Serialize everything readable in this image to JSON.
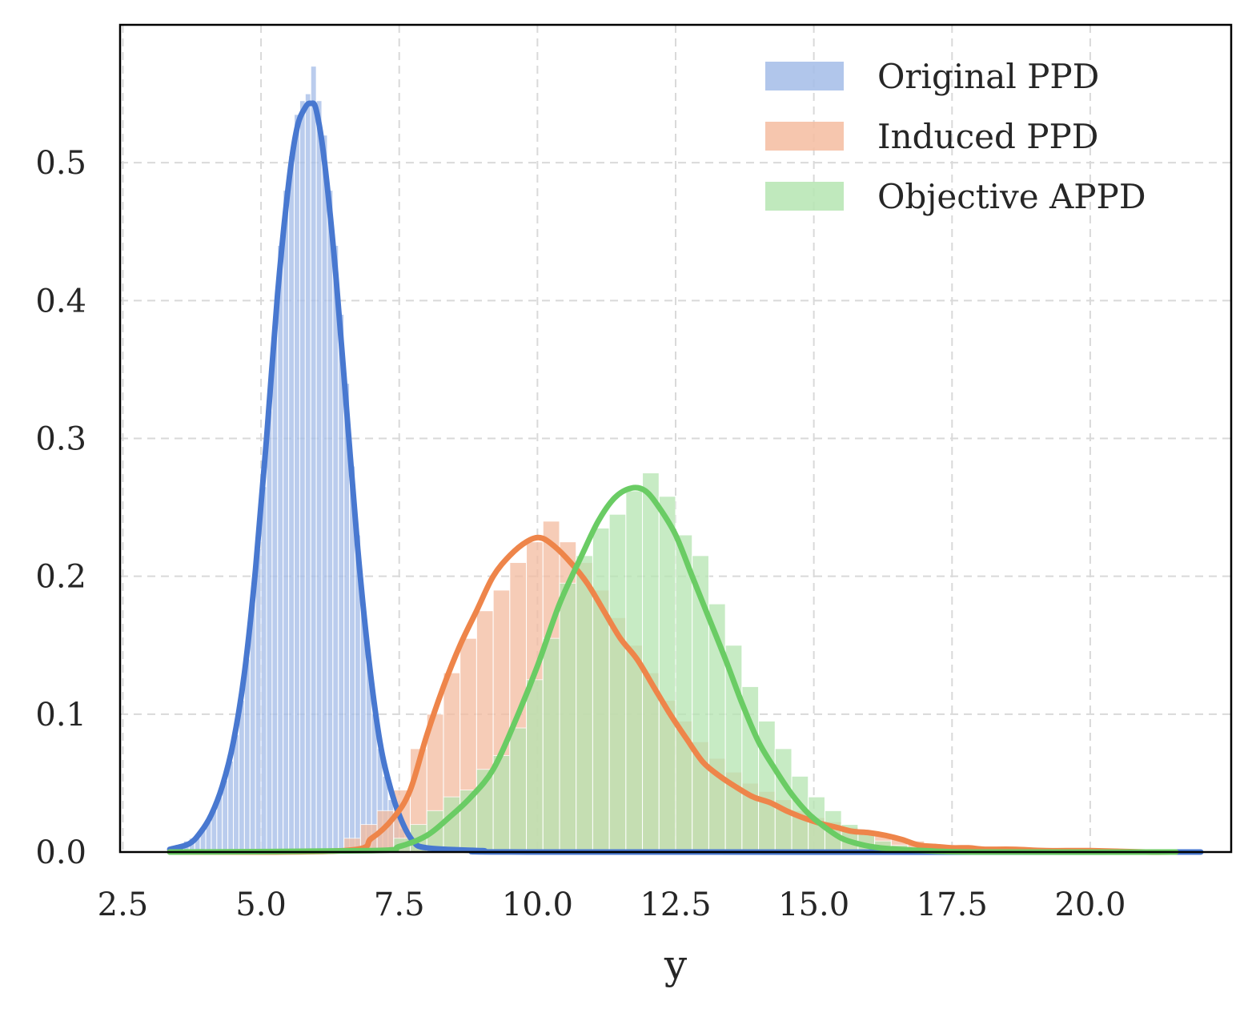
{
  "chart_data": {
    "type": "histogram+kde",
    "title": "",
    "xlabel": "y",
    "ylabel": "",
    "xlim": [
      2.45,
      22.55
    ],
    "ylim": [
      0.0,
      0.6
    ],
    "x_ticks": [
      2.5,
      5.0,
      7.5,
      10.0,
      12.5,
      15.0,
      17.5,
      20.0
    ],
    "x_tick_labels": [
      "2.5",
      "5.0",
      "7.5",
      "10.0",
      "12.5",
      "15.0",
      "17.5",
      "20.0"
    ],
    "y_ticks": [
      0.0,
      0.1,
      0.2,
      0.3,
      0.4,
      0.5
    ],
    "y_tick_labels": [
      "0.0",
      "0.1",
      "0.2",
      "0.3",
      "0.4",
      "0.5"
    ],
    "grid": true,
    "legend_position": "top-right",
    "series": [
      {
        "name": "Original PPD",
        "color": "#4878d0",
        "hist_color": "#a3bce8",
        "bins": [
          [
            3.35,
            0.003
          ],
          [
            3.45,
            0.005
          ],
          [
            3.55,
            0.006
          ],
          [
            3.65,
            0.008
          ],
          [
            3.75,
            0.01
          ],
          [
            3.85,
            0.013
          ],
          [
            3.95,
            0.016
          ],
          [
            4.05,
            0.022
          ],
          [
            4.15,
            0.03
          ],
          [
            4.25,
            0.04
          ],
          [
            4.35,
            0.052
          ],
          [
            4.45,
            0.066
          ],
          [
            4.55,
            0.085
          ],
          [
            4.65,
            0.11
          ],
          [
            4.75,
            0.14
          ],
          [
            4.85,
            0.18
          ],
          [
            4.95,
            0.22
          ],
          [
            5.05,
            0.265
          ],
          [
            5.15,
            0.32
          ],
          [
            5.25,
            0.38
          ],
          [
            5.35,
            0.44
          ],
          [
            5.45,
            0.48
          ],
          [
            5.55,
            0.505
          ],
          [
            5.65,
            0.535
          ],
          [
            5.75,
            0.545
          ],
          [
            5.85,
            0.55
          ],
          [
            5.95,
            0.57
          ],
          [
            6.05,
            0.545
          ],
          [
            6.15,
            0.52
          ],
          [
            6.25,
            0.48
          ],
          [
            6.35,
            0.44
          ],
          [
            6.45,
            0.39
          ],
          [
            6.55,
            0.34
          ],
          [
            6.65,
            0.28
          ],
          [
            6.75,
            0.23
          ],
          [
            6.85,
            0.18
          ],
          [
            6.95,
            0.14
          ],
          [
            7.05,
            0.1
          ],
          [
            7.15,
            0.075
          ],
          [
            7.25,
            0.055
          ],
          [
            7.35,
            0.038
          ],
          [
            7.45,
            0.026
          ],
          [
            7.55,
            0.017
          ],
          [
            7.65,
            0.011
          ],
          [
            7.75,
            0.007
          ],
          [
            7.85,
            0.005
          ],
          [
            7.95,
            0.003
          ],
          [
            8.05,
            0.002
          ],
          [
            8.15,
            0.001
          ],
          [
            8.25,
            0.001
          ]
        ],
        "bin_width": 0.1,
        "kde": [
          [
            3.35,
            0.002
          ],
          [
            3.7,
            0.006
          ],
          [
            3.9,
            0.014
          ],
          [
            4.1,
            0.027
          ],
          [
            4.3,
            0.048
          ],
          [
            4.5,
            0.08
          ],
          [
            4.7,
            0.13
          ],
          [
            4.9,
            0.205
          ],
          [
            5.1,
            0.3
          ],
          [
            5.3,
            0.405
          ],
          [
            5.5,
            0.485
          ],
          [
            5.65,
            0.525
          ],
          [
            5.8,
            0.54
          ],
          [
            5.9,
            0.543
          ],
          [
            6.0,
            0.538
          ],
          [
            6.15,
            0.5
          ],
          [
            6.35,
            0.42
          ],
          [
            6.55,
            0.32
          ],
          [
            6.75,
            0.22
          ],
          [
            6.95,
            0.14
          ],
          [
            7.15,
            0.08
          ],
          [
            7.35,
            0.045
          ],
          [
            7.55,
            0.022
          ],
          [
            7.75,
            0.008
          ],
          [
            8.0,
            0.003
          ],
          [
            9.0,
            0.001
          ],
          [
            10.0,
            0.0
          ],
          [
            22.0,
            0.0
          ]
        ]
      },
      {
        "name": "Induced PPD",
        "color": "#ee854a",
        "hist_color": "#f4bca0",
        "bins": [
          [
            6.65,
            0.01
          ],
          [
            6.95,
            0.02
          ],
          [
            7.25,
            0.03
          ],
          [
            7.55,
            0.045
          ],
          [
            7.85,
            0.075
          ],
          [
            8.15,
            0.1
          ],
          [
            8.45,
            0.13
          ],
          [
            8.75,
            0.155
          ],
          [
            9.05,
            0.175
          ],
          [
            9.35,
            0.19
          ],
          [
            9.65,
            0.21
          ],
          [
            9.95,
            0.225
          ],
          [
            10.25,
            0.24
          ],
          [
            10.55,
            0.225
          ],
          [
            10.85,
            0.21
          ],
          [
            11.15,
            0.19
          ],
          [
            11.45,
            0.17
          ],
          [
            11.75,
            0.15
          ],
          [
            12.05,
            0.13
          ],
          [
            12.35,
            0.11
          ],
          [
            12.65,
            0.095
          ],
          [
            12.95,
            0.08
          ],
          [
            13.25,
            0.068
          ],
          [
            13.55,
            0.058
          ],
          [
            13.85,
            0.05
          ],
          [
            14.15,
            0.044
          ],
          [
            14.45,
            0.038
          ],
          [
            14.75,
            0.03
          ],
          [
            15.05,
            0.025
          ],
          [
            15.35,
            0.022
          ],
          [
            15.65,
            0.018
          ],
          [
            15.95,
            0.015
          ],
          [
            16.25,
            0.012
          ],
          [
            16.55,
            0.01
          ],
          [
            16.85,
            0.008
          ],
          [
            17.15,
            0.006
          ],
          [
            17.45,
            0.005
          ],
          [
            17.75,
            0.004
          ],
          [
            18.05,
            0.003
          ],
          [
            18.35,
            0.003
          ],
          [
            18.65,
            0.002
          ],
          [
            18.95,
            0.002
          ],
          [
            19.25,
            0.001
          ],
          [
            19.55,
            0.001
          ],
          [
            19.85,
            0.001
          ],
          [
            20.15,
            0.001
          ]
        ],
        "bin_width": 0.3,
        "kde": [
          [
            3.35,
            0.0
          ],
          [
            6.5,
            0.001
          ],
          [
            7.0,
            0.01
          ],
          [
            7.4,
            0.025
          ],
          [
            7.7,
            0.045
          ],
          [
            8.0,
            0.085
          ],
          [
            8.3,
            0.12
          ],
          [
            8.6,
            0.15
          ],
          [
            8.9,
            0.175
          ],
          [
            9.2,
            0.2
          ],
          [
            9.5,
            0.215
          ],
          [
            9.8,
            0.225
          ],
          [
            10.05,
            0.228
          ],
          [
            10.3,
            0.222
          ],
          [
            10.6,
            0.21
          ],
          [
            10.9,
            0.195
          ],
          [
            11.2,
            0.175
          ],
          [
            11.5,
            0.155
          ],
          [
            11.8,
            0.14
          ],
          [
            12.1,
            0.12
          ],
          [
            12.4,
            0.1
          ],
          [
            12.7,
            0.082
          ],
          [
            13.0,
            0.065
          ],
          [
            13.3,
            0.055
          ],
          [
            13.6,
            0.047
          ],
          [
            13.9,
            0.04
          ],
          [
            14.2,
            0.036
          ],
          [
            14.5,
            0.03
          ],
          [
            14.8,
            0.025
          ],
          [
            15.1,
            0.021
          ],
          [
            15.4,
            0.018
          ],
          [
            15.7,
            0.015
          ],
          [
            16.0,
            0.014
          ],
          [
            16.3,
            0.012
          ],
          [
            16.6,
            0.009
          ],
          [
            16.9,
            0.005
          ],
          [
            17.2,
            0.004
          ],
          [
            17.5,
            0.003
          ],
          [
            17.8,
            0.003
          ],
          [
            18.1,
            0.002
          ],
          [
            18.6,
            0.002
          ],
          [
            19.2,
            0.001
          ],
          [
            20.0,
            0.001
          ],
          [
            21.0,
            0.0
          ],
          [
            21.55,
            0.0
          ]
        ]
      },
      {
        "name": "Objective APPD",
        "color": "#6acc64",
        "hist_color": "#b5e5b1",
        "bins": [
          [
            7.55,
            0.01
          ],
          [
            7.85,
            0.02
          ],
          [
            8.15,
            0.03
          ],
          [
            8.45,
            0.04
          ],
          [
            8.75,
            0.045
          ],
          [
            9.05,
            0.06
          ],
          [
            9.35,
            0.07
          ],
          [
            9.65,
            0.09
          ],
          [
            9.95,
            0.125
          ],
          [
            10.25,
            0.155
          ],
          [
            10.55,
            0.195
          ],
          [
            10.85,
            0.215
          ],
          [
            11.15,
            0.235
          ],
          [
            11.45,
            0.245
          ],
          [
            11.75,
            0.262
          ],
          [
            12.05,
            0.275
          ],
          [
            12.35,
            0.258
          ],
          [
            12.65,
            0.23
          ],
          [
            12.95,
            0.215
          ],
          [
            13.25,
            0.18
          ],
          [
            13.55,
            0.15
          ],
          [
            13.85,
            0.12
          ],
          [
            14.15,
            0.095
          ],
          [
            14.45,
            0.075
          ],
          [
            14.75,
            0.055
          ],
          [
            15.05,
            0.04
          ],
          [
            15.35,
            0.03
          ],
          [
            15.65,
            0.02
          ],
          [
            15.95,
            0.014
          ],
          [
            16.25,
            0.008
          ],
          [
            16.55,
            0.005
          ],
          [
            16.85,
            0.003
          ],
          [
            17.15,
            0.002
          ],
          [
            17.45,
            0.001
          ]
        ],
        "bin_width": 0.3,
        "kde": [
          [
            3.35,
            0.0
          ],
          [
            7.0,
            0.001
          ],
          [
            7.5,
            0.004
          ],
          [
            8.0,
            0.012
          ],
          [
            8.4,
            0.025
          ],
          [
            8.8,
            0.04
          ],
          [
            9.2,
            0.06
          ],
          [
            9.6,
            0.095
          ],
          [
            10.0,
            0.135
          ],
          [
            10.4,
            0.18
          ],
          [
            10.8,
            0.215
          ],
          [
            11.1,
            0.24
          ],
          [
            11.4,
            0.257
          ],
          [
            11.7,
            0.264
          ],
          [
            11.95,
            0.262
          ],
          [
            12.2,
            0.25
          ],
          [
            12.5,
            0.23
          ],
          [
            12.8,
            0.2
          ],
          [
            13.1,
            0.17
          ],
          [
            13.4,
            0.14
          ],
          [
            13.7,
            0.108
          ],
          [
            14.0,
            0.08
          ],
          [
            14.3,
            0.06
          ],
          [
            14.6,
            0.042
          ],
          [
            14.9,
            0.028
          ],
          [
            15.2,
            0.018
          ],
          [
            15.5,
            0.01
          ],
          [
            15.8,
            0.006
          ],
          [
            16.2,
            0.003
          ],
          [
            17.0,
            0.001
          ],
          [
            18.0,
            0.0
          ],
          [
            21.55,
            0.0
          ]
        ]
      }
    ]
  }
}
